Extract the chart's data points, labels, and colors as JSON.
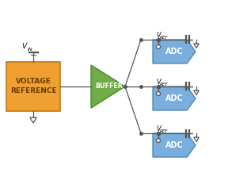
{
  "bg_color": "#ffffff",
  "buffer_color": "#70ad47",
  "buffer_edge": "#4a8a2a",
  "voltref_color": "#f0a030",
  "voltref_edge": "#c07818",
  "adc_color": "#7aaedc",
  "adc_edge": "#4a80b0",
  "line_color": "#555555",
  "text_color": "#000000",
  "voltref_line1": "VOLTAGE",
  "voltref_line2": "REFERENCE",
  "buffer_label": "BUFFER",
  "adc_label": "ADC",
  "vin_v": "V",
  "vin_sub": "IN",
  "vref_v": "V",
  "vref_sub": "REF",
  "figsize": [
    2.88,
    2.18
  ],
  "dpi": 100
}
